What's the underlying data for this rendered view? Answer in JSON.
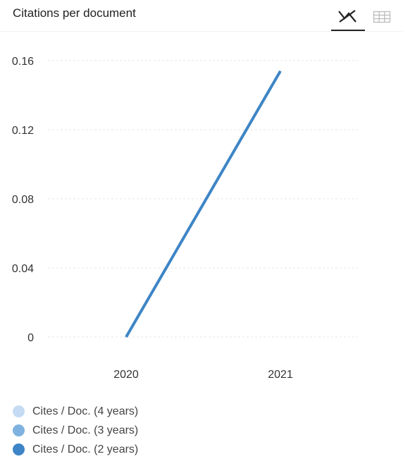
{
  "header": {
    "title": "Citations per document",
    "chart_view_icon": "line-chart-icon",
    "table_view_icon": "table-grid-icon"
  },
  "colors": {
    "series_4y": "#c5dbf3",
    "series_3y": "#7fb2e0",
    "series_2y": "#3d85c6",
    "grid": "#e6e6e6"
  },
  "chart_data": {
    "type": "line",
    "title": "Citations per document",
    "x": [
      "2020",
      "2021"
    ],
    "ylim": [
      0,
      0.16
    ],
    "yticks": [
      "0",
      "0.04",
      "0.08",
      "0.12",
      "0.16"
    ],
    "ytick_values": [
      0,
      0.04,
      0.08,
      0.12,
      0.16
    ],
    "grid": true,
    "legend_position": "bottom-left",
    "series": [
      {
        "name": "Cites / Doc. (4 years)",
        "color": "#c5dbf3",
        "values": [
          null,
          null
        ]
      },
      {
        "name": "Cites / Doc. (3 years)",
        "color": "#7fb2e0",
        "values": [
          null,
          null
        ]
      },
      {
        "name": "Cites / Doc. (2 years)",
        "color": "#3d85c6",
        "values": [
          0,
          0.154
        ]
      }
    ]
  }
}
